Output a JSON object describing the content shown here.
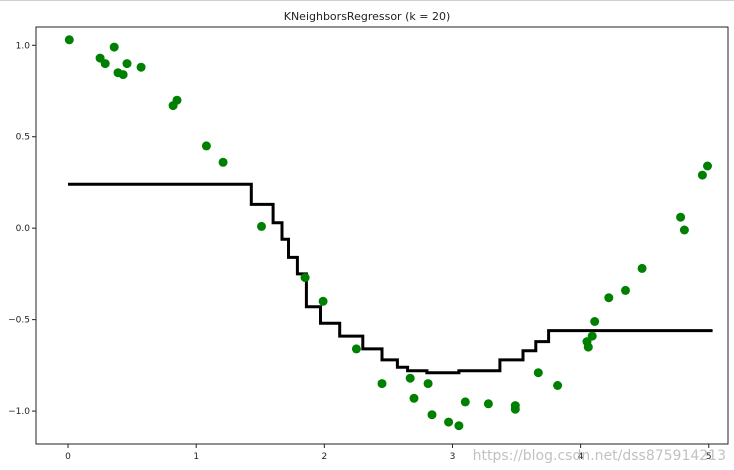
{
  "watermark": "https://blog.csdn.net/dss875914213",
  "colors": {
    "points": "#008000",
    "line": "#000000",
    "axes": "#222222"
  },
  "chart_data": {
    "type": "scatter",
    "title": "KNeighborsRegressor (k = 20)",
    "xlabel": "",
    "ylabel": "",
    "xlim": [
      -0.25,
      5.15
    ],
    "ylim": [
      -1.18,
      1.1
    ],
    "xticks": [
      0,
      1,
      2,
      3,
      4,
      5
    ],
    "xtick_labels": [
      "0",
      "1",
      "2",
      "3",
      "4",
      "5"
    ],
    "yticks": [
      -1.0,
      -0.5,
      0.0,
      0.5,
      1.0
    ],
    "ytick_labels": [
      "−1.0",
      "−0.5",
      "0.0",
      "0.5",
      "1.0"
    ],
    "grid": false,
    "legend": "none",
    "series": [
      {
        "kind": "scatter",
        "x": [
          0.01,
          0.25,
          0.29,
          0.36,
          0.39,
          0.43,
          0.46,
          0.57,
          0.82,
          0.85,
          1.08,
          1.21,
          1.51,
          1.85,
          1.99,
          2.25,
          2.45,
          2.67,
          2.7,
          2.81,
          2.84,
          2.97,
          3.05,
          3.1,
          3.28,
          3.49,
          3.49,
          3.67,
          3.82,
          4.05,
          4.06,
          4.09,
          4.11,
          4.22,
          4.35,
          4.48,
          4.78,
          4.81,
          4.95,
          4.99
        ],
        "y": [
          1.03,
          0.93,
          0.9,
          0.99,
          0.85,
          0.84,
          0.9,
          0.88,
          0.67,
          0.7,
          0.45,
          0.36,
          0.01,
          -0.27,
          -0.4,
          -0.66,
          -0.85,
          -0.82,
          -0.93,
          -0.85,
          -1.02,
          -1.06,
          -1.08,
          -0.95,
          -0.96,
          -0.97,
          -0.99,
          -0.79,
          -0.86,
          -0.62,
          -0.65,
          -0.59,
          -0.51,
          -0.38,
          -0.34,
          -0.22,
          0.06,
          -0.01,
          0.29,
          0.34
        ]
      },
      {
        "kind": "step-line",
        "x": [
          0.0,
          1.43,
          1.43,
          1.6,
          1.6,
          1.67,
          1.67,
          1.72,
          1.72,
          1.79,
          1.79,
          1.86,
          1.86,
          1.97,
          1.97,
          2.12,
          2.12,
          2.3,
          2.3,
          2.45,
          2.45,
          2.57,
          2.57,
          2.65,
          2.65,
          2.8,
          2.8,
          3.05,
          3.05,
          3.37,
          3.37,
          3.55,
          3.55,
          3.65,
          3.65,
          3.75,
          3.75,
          3.88,
          3.88,
          5.03
        ],
        "y": [
          0.24,
          0.24,
          0.13,
          0.13,
          0.03,
          0.03,
          -0.06,
          -0.06,
          -0.16,
          -0.16,
          -0.25,
          -0.25,
          -0.43,
          -0.43,
          -0.52,
          -0.52,
          -0.59,
          -0.59,
          -0.66,
          -0.66,
          -0.72,
          -0.72,
          -0.76,
          -0.76,
          -0.78,
          -0.78,
          -0.79,
          -0.79,
          -0.78,
          -0.78,
          -0.72,
          -0.72,
          -0.67,
          -0.67,
          -0.62,
          -0.62,
          -0.56,
          -0.56,
          -0.56,
          -0.56
        ]
      }
    ]
  }
}
